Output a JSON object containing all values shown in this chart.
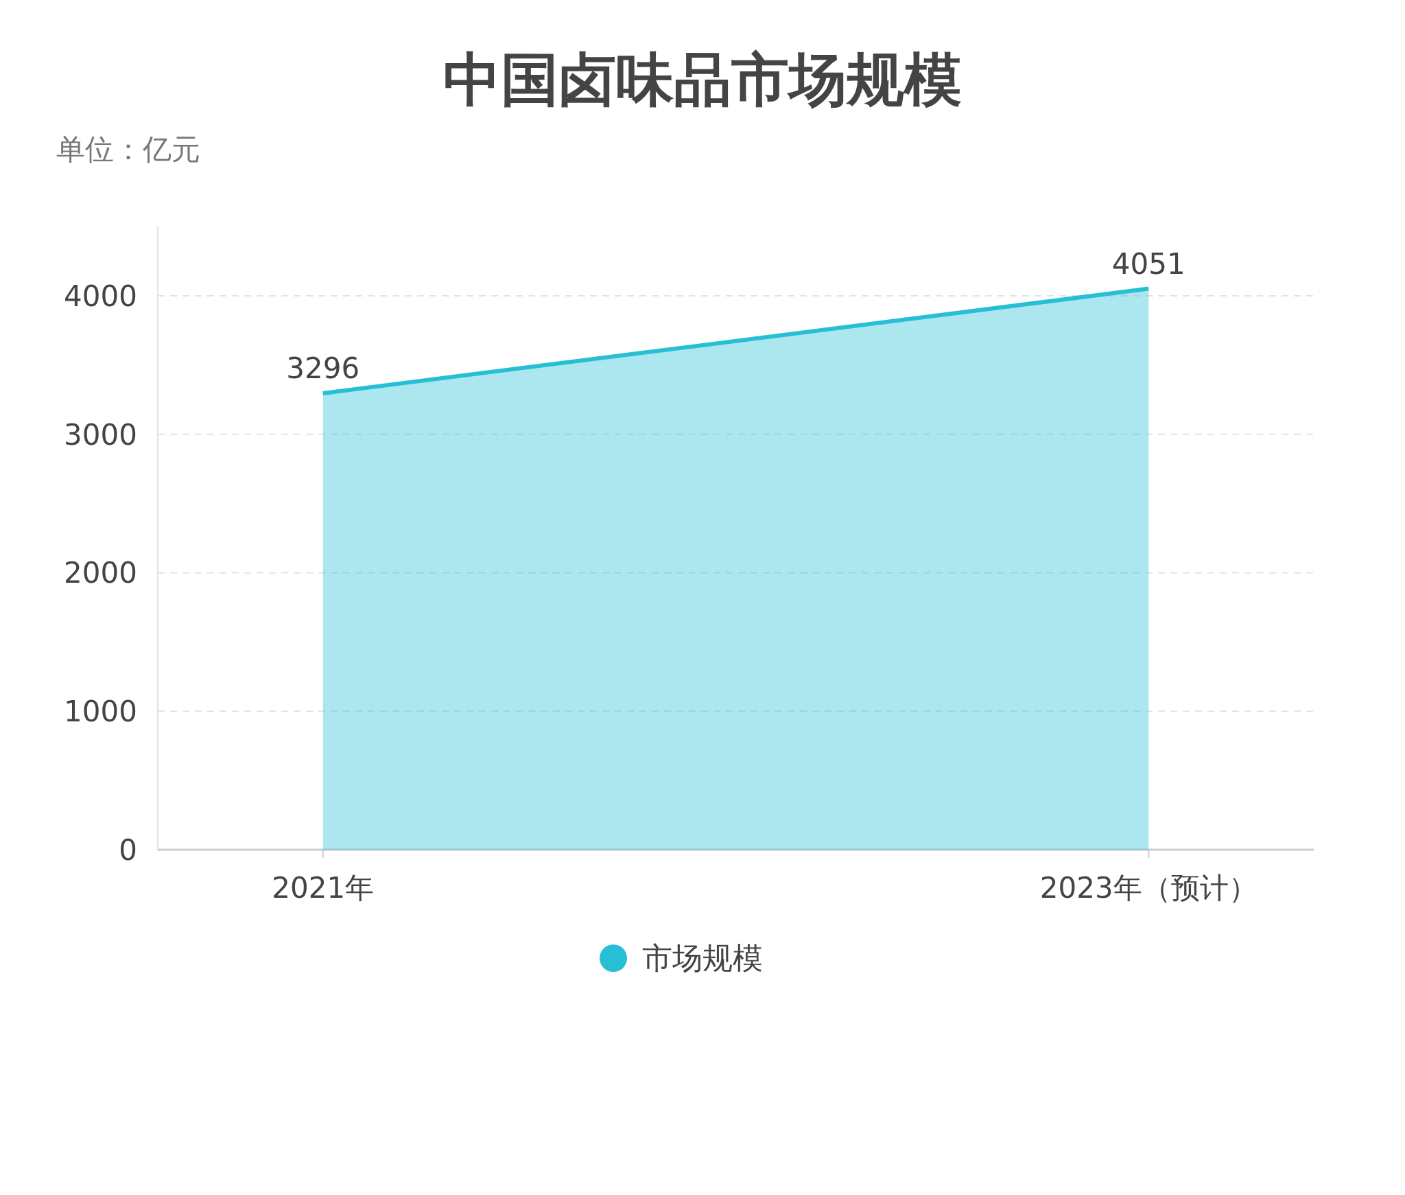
{
  "chart_data": {
    "type": "area",
    "title": "中国卤味品市场规模",
    "ylabel": "单位：亿元",
    "categories": [
      "2021年",
      "2023年（预计）"
    ],
    "series": [
      {
        "name": "市场规模",
        "color": "#26bfd5",
        "values": [
          3296,
          4051
        ]
      }
    ],
    "ylim": [
      0,
      4500
    ],
    "yticks": [
      0,
      1000,
      2000,
      3000,
      4000
    ],
    "grid": "y",
    "legend": "bottom",
    "data_labels": true
  }
}
